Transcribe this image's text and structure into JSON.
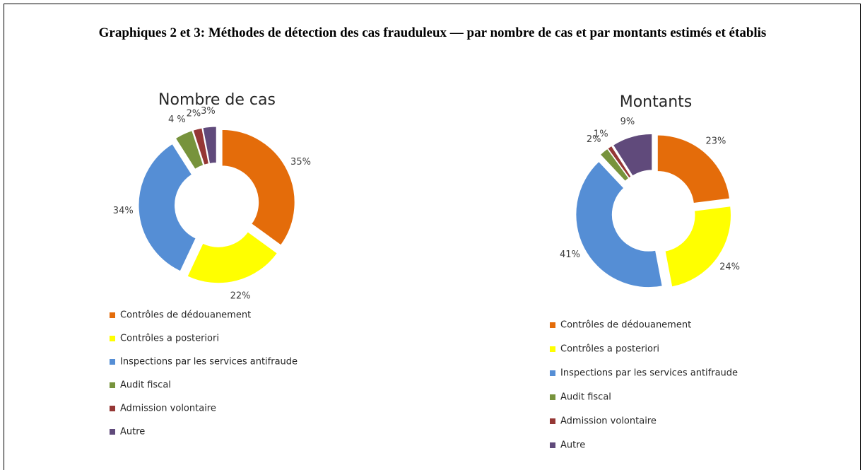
{
  "title": "Graphiques 2 et 3: Méthodes de détection des cas frauduleux — par nombre de cas et par montants estimés et établis",
  "chart_data": [
    {
      "type": "pie",
      "donut": true,
      "title": "Nombre de cas",
      "categories": [
        "Contrôles de dédouanement",
        "Contrôles a posteriori",
        "Inspections par les services antifraude",
        "Audit fiscal",
        "Admission volontaire",
        "Autre"
      ],
      "values": [
        35,
        22,
        34,
        4,
        2,
        3
      ],
      "value_labels": [
        "35%",
        "22%",
        "34%",
        "4 %",
        "2%",
        "3%"
      ],
      "colors": [
        "#e46c0a",
        "#ffff00",
        "#558ed5",
        "#77933c",
        "#953735",
        "#604a7b"
      ]
    },
    {
      "type": "pie",
      "donut": true,
      "title": "Montants",
      "categories": [
        "Contrôles de dédouanement",
        "Contrôles a posteriori",
        "Inspections par les services antifraude",
        "Audit fiscal",
        "Admission volontaire",
        "Autre"
      ],
      "values": [
        23,
        24,
        41,
        2,
        1,
        9
      ],
      "value_labels": [
        "23%",
        "24%",
        "41%",
        "2%",
        "1%",
        "9%"
      ],
      "colors": [
        "#e46c0a",
        "#ffff00",
        "#558ed5",
        "#77933c",
        "#953735",
        "#604a7b"
      ]
    }
  ]
}
